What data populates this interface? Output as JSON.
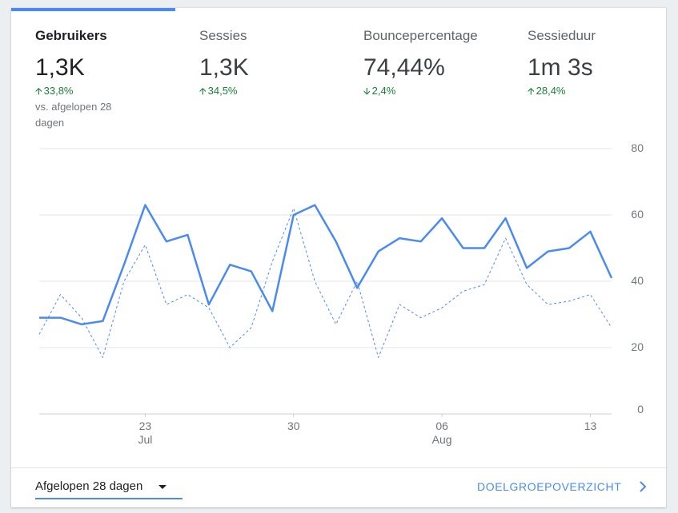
{
  "metrics": [
    {
      "label": "Gebruikers",
      "value": "1,3K",
      "change": "33,8%",
      "direction": "up",
      "comparison": "vs. afgelopen 28 dagen"
    },
    {
      "label": "Sessies",
      "value": "1,3K",
      "change": "34,5%",
      "direction": "up"
    },
    {
      "label": "Bouncepercentage",
      "value": "74,44%",
      "change": "2,4%",
      "direction": "down"
    },
    {
      "label": "Sessieduur",
      "value": "1m 3s",
      "change": "28,4%",
      "direction": "up"
    }
  ],
  "chart_data": {
    "type": "line",
    "y_ticks": [
      80,
      60,
      40,
      20,
      0
    ],
    "ylim": [
      0,
      80
    ],
    "x_labels": [
      {
        "index": 5,
        "day": "23",
        "month": "Jul"
      },
      {
        "index": 12,
        "day": "30",
        "month": ""
      },
      {
        "index": 19,
        "day": "06",
        "month": "Aug"
      },
      {
        "index": 26,
        "day": "13",
        "month": ""
      }
    ],
    "series": [
      {
        "values": [
          29,
          29,
          27,
          28,
          45,
          63,
          52,
          54,
          33,
          45,
          43,
          31,
          60,
          63,
          52,
          38,
          49,
          53,
          52,
          59,
          50,
          50,
          59,
          44,
          49,
          50,
          55,
          41
        ],
        "color": "#4a8af4",
        "style": "solid"
      },
      {
        "values": [
          24,
          36,
          29,
          17,
          40,
          51,
          33,
          36,
          32,
          20,
          26,
          46,
          62,
          40,
          27,
          40,
          17,
          33,
          29,
          32,
          37,
          39,
          53,
          39,
          33,
          34,
          36,
          26
        ],
        "color": "#4a8af4",
        "style": "dashed"
      }
    ],
    "grid": true
  },
  "footer": {
    "date_range": "Afgelopen 28 dagen",
    "report_link": "DOELGROEPOVERZICHT"
  },
  "colors": {
    "accent": "#4a8af4",
    "positive": "#188038",
    "card_background": "#ffffff",
    "page_background": "#eceff1"
  },
  "icons": {
    "change_up": "arrow-up-icon",
    "change_down": "arrow-down-icon",
    "dropdown": "caret-down-icon",
    "link": "chevron-right-icon"
  }
}
